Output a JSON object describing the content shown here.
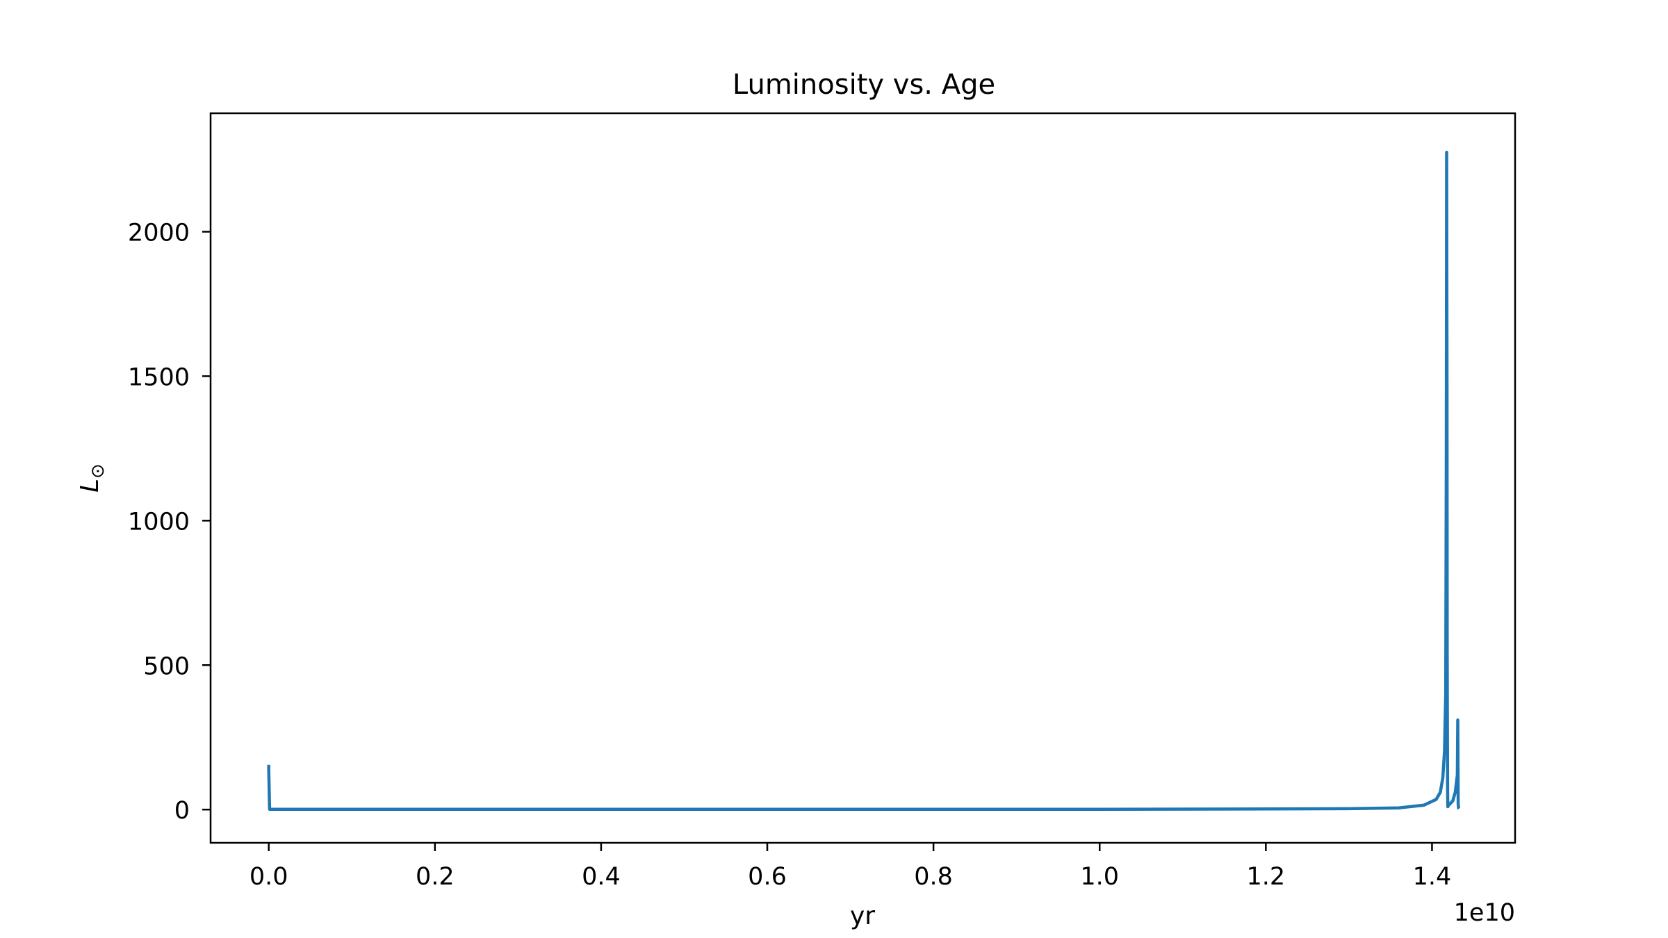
{
  "chart_data": {
    "type": "line",
    "title": "Luminosity vs. Age",
    "xlabel": "yr",
    "ylabel": "L",
    "ylabel_sub": "⊙",
    "x_offset_label": "1e10",
    "xlim": [
      -0.07,
      1.5
    ],
    "ylim": [
      -115,
      2410
    ],
    "grid": false,
    "legend": "none",
    "x_ticks": [
      {
        "value": 0.0,
        "label": "0.0"
      },
      {
        "value": 0.2,
        "label": "0.2"
      },
      {
        "value": 0.4,
        "label": "0.4"
      },
      {
        "value": 0.6,
        "label": "0.6"
      },
      {
        "value": 0.8,
        "label": "0.8"
      },
      {
        "value": 1.0,
        "label": "1.0"
      },
      {
        "value": 1.2,
        "label": "1.2"
      },
      {
        "value": 1.4,
        "label": "1.4"
      }
    ],
    "y_ticks": [
      {
        "value": 0,
        "label": "0"
      },
      {
        "value": 500,
        "label": "500"
      },
      {
        "value": 1000,
        "label": "1000"
      },
      {
        "value": 1500,
        "label": "1500"
      },
      {
        "value": 2000,
        "label": "2000"
      }
    ],
    "series": [
      {
        "color": "#1f77b4",
        "x": [
          0.0,
          0.0,
          0.001,
          0.2,
          0.4,
          0.6,
          0.8,
          1.0,
          1.2,
          1.3,
          1.36,
          1.39,
          1.405,
          1.41,
          1.413,
          1.415,
          1.4165,
          1.4172,
          1.4176,
          1.418,
          1.4183,
          1.4186,
          1.4188,
          1.419,
          1.4195,
          1.42,
          1.425,
          1.428,
          1.4305,
          1.431,
          1.4315,
          1.432,
          1.4325
        ],
        "y": [
          155,
          140,
          1,
          1,
          1,
          1,
          1,
          1,
          2,
          3,
          6,
          15,
          35,
          60,
          110,
          200,
          400,
          1200,
          2275,
          1500,
          540,
          200,
          60,
          10,
          20,
          15,
          30,
          60,
          120,
          310,
          20,
          5,
          3
        ]
      }
    ]
  }
}
